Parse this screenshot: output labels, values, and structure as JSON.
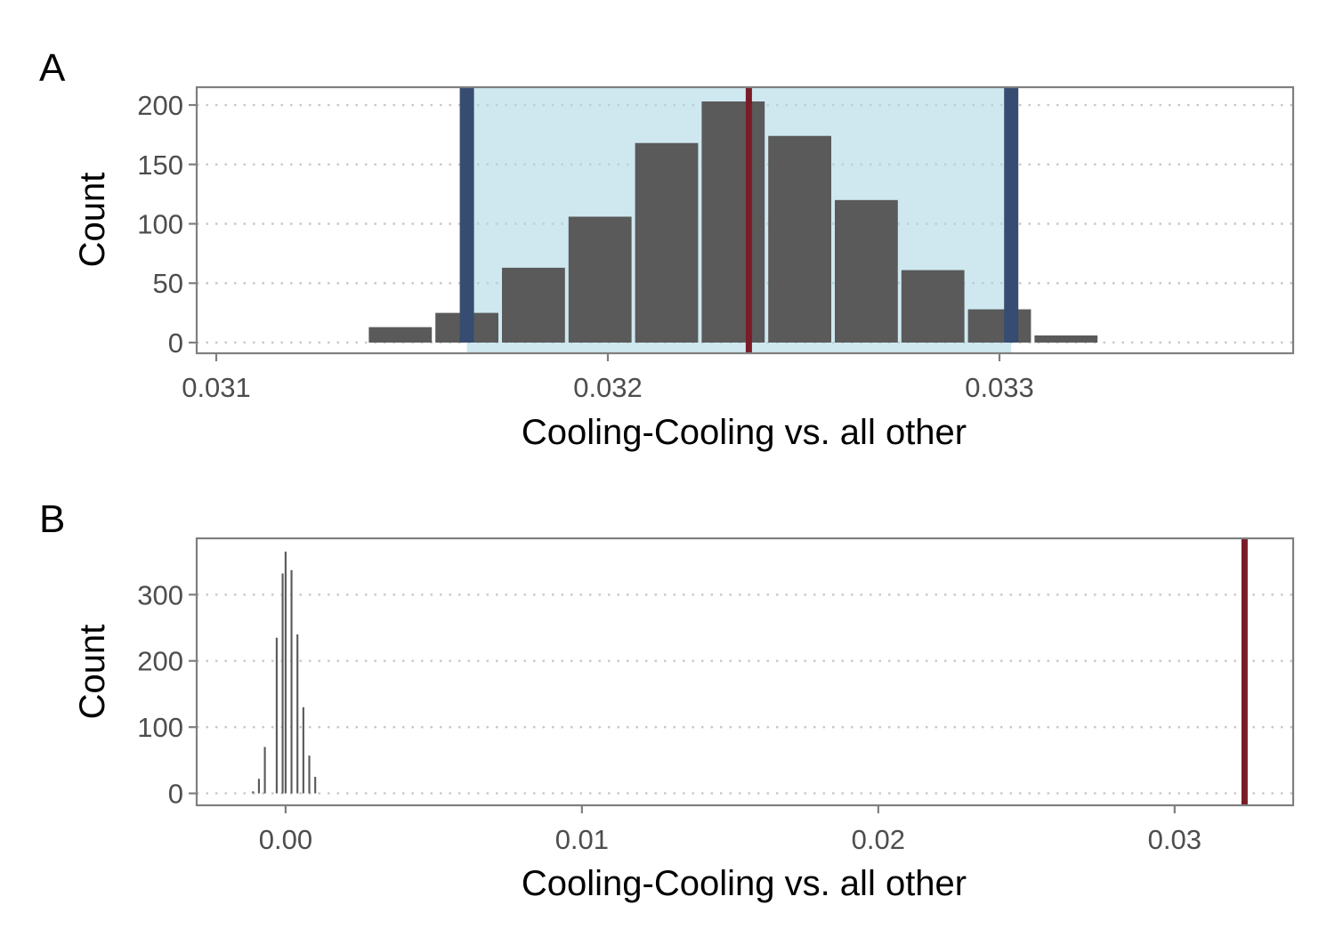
{
  "chart_data": [
    {
      "panel": "A",
      "type": "bar",
      "xlabel": "Cooling-Cooling vs. all other",
      "ylabel": "Count",
      "xlim": [
        0.03095,
        0.03375
      ],
      "ylim": [
        -9,
        215
      ],
      "x_ticks": [
        0.031,
        0.032,
        0.033
      ],
      "x_tick_labels": [
        "0.031",
        "0.032",
        "0.033"
      ],
      "y_ticks": [
        0,
        50,
        100,
        150,
        200
      ],
      "y_tick_labels": [
        "0",
        "50",
        "100",
        "150",
        "200"
      ],
      "grid": {
        "major_y": "dotted",
        "minor_x": "white"
      },
      "bin_width": 0.00017,
      "bins": [
        {
          "x": 0.03147,
          "count": 13
        },
        {
          "x": 0.03164,
          "count": 25
        },
        {
          "x": 0.03181,
          "count": 63
        },
        {
          "x": 0.03198,
          "count": 106
        },
        {
          "x": 0.03215,
          "count": 168
        },
        {
          "x": 0.03232,
          "count": 203
        },
        {
          "x": 0.03249,
          "count": 174
        },
        {
          "x": 0.03266,
          "count": 120
        },
        {
          "x": 0.03283,
          "count": 61
        },
        {
          "x": 0.033,
          "count": 28
        },
        {
          "x": 0.03317,
          "count": 6
        }
      ],
      "interval": {
        "lower": 0.03164,
        "upper": 0.03303
      },
      "observed": 0.03236,
      "colors": {
        "bar": "#5a5a5a",
        "band": "#add8e6",
        "bounds": "#364c70",
        "observed": "#7a1c28"
      }
    },
    {
      "panel": "B",
      "type": "bar",
      "xlabel": "Cooling-Cooling vs. all other",
      "ylabel": "Count",
      "xlim": [
        -0.003,
        0.034
      ],
      "ylim": [
        -18,
        385
      ],
      "x_ticks": [
        0.0,
        0.01,
        0.02,
        0.03
      ],
      "x_tick_labels": [
        "0.00",
        "0.01",
        "0.02",
        "0.03"
      ],
      "y_ticks": [
        0,
        100,
        200,
        300
      ],
      "y_tick_labels": [
        "0",
        "100",
        "200",
        "300"
      ],
      "grid": {
        "major_y": "dotted",
        "minor_x": "white"
      },
      "bin_width": 0.0001,
      "bins": [
        {
          "x": -0.0011,
          "count": 3
        },
        {
          "x": -0.0009,
          "count": 22
        },
        {
          "x": -0.0007,
          "count": 70
        },
        {
          "x": -0.0003,
          "count": 235
        },
        {
          "x": -0.0001,
          "count": 332
        },
        {
          "x": 0.0,
          "count": 365
        },
        {
          "x": 0.0002,
          "count": 337
        },
        {
          "x": 0.0004,
          "count": 240
        },
        {
          "x": 0.0006,
          "count": 130
        },
        {
          "x": 0.0008,
          "count": 57
        },
        {
          "x": 0.001,
          "count": 25
        }
      ],
      "observed": 0.03236,
      "colors": {
        "bar": "#5a5a5a",
        "observed": "#7a1c28"
      }
    }
  ]
}
